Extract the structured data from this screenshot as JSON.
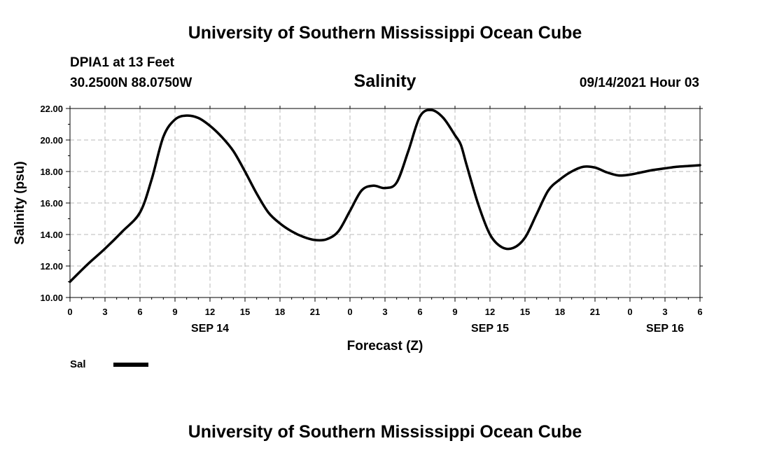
{
  "header": {
    "title": "University of Southern Mississippi Ocean Cube",
    "station": "DPIA1 at 13 Feet",
    "location": "30.2500N  88.0750W",
    "variable": "Salinity",
    "datetime": "09/14/2021 Hour 03"
  },
  "footer": {
    "title": "University of Southern Mississippi Ocean Cube"
  },
  "legend": {
    "label": "Sal",
    "color": "#000000"
  },
  "chart_data": {
    "type": "line",
    "title": "Salinity",
    "xlabel": "Forecast (Z)",
    "ylabel": "Salinity (psu)",
    "ylim": [
      10.0,
      22.0
    ],
    "xlim": [
      0,
      54
    ],
    "y_ticks": [
      "10.00",
      "12.00",
      "14.00",
      "16.00",
      "18.00",
      "20.00",
      "22.00"
    ],
    "x_ticks": [
      "0",
      "3",
      "6",
      "9",
      "12",
      "15",
      "18",
      "21",
      "0",
      "3",
      "6",
      "9",
      "12",
      "15",
      "18",
      "21",
      "0",
      "3",
      "6"
    ],
    "day_labels": [
      {
        "label": "SEP 14",
        "hour": 12
      },
      {
        "label": "SEP 15",
        "hour": 36
      },
      {
        "label": "SEP 16",
        "hour": 51
      }
    ],
    "grid": true,
    "legend_position": "bottom-left",
    "series": [
      {
        "name": "Sal",
        "color": "#000000",
        "x": [
          0,
          1.5,
          3,
          4.5,
          6,
          7,
          8,
          9,
          10,
          11,
          12,
          13,
          14,
          15,
          16,
          17,
          18,
          19,
          20,
          21,
          22,
          23,
          24,
          25,
          26,
          27,
          28,
          29,
          30,
          31,
          32,
          33,
          33.5,
          34,
          35,
          36,
          37,
          38,
          39,
          40,
          41,
          42,
          43,
          44,
          45,
          46,
          47,
          48,
          49,
          50,
          51,
          52,
          53,
          54
        ],
        "y": [
          11.0,
          12.1,
          13.1,
          14.2,
          15.4,
          17.5,
          20.2,
          21.3,
          21.55,
          21.4,
          20.9,
          20.2,
          19.3,
          18.0,
          16.6,
          15.4,
          14.7,
          14.2,
          13.85,
          13.65,
          13.7,
          14.2,
          15.5,
          16.8,
          17.1,
          16.95,
          17.3,
          19.3,
          21.5,
          21.9,
          21.4,
          20.3,
          19.7,
          18.4,
          15.9,
          14.0,
          13.2,
          13.15,
          13.8,
          15.3,
          16.8,
          17.5,
          18.0,
          18.3,
          18.25,
          17.95,
          17.75,
          17.8,
          17.95,
          18.1,
          18.2,
          18.3,
          18.35,
          18.4
        ]
      }
    ]
  }
}
